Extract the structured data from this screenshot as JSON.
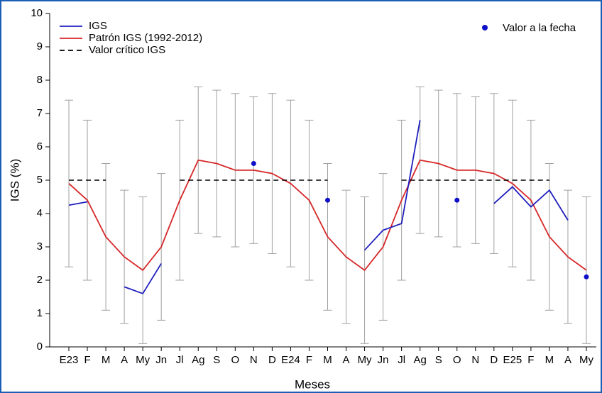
{
  "chart_data": {
    "type": "line",
    "x_label": "Meses",
    "y_label": "IGS (%)",
    "categories": [
      "E23",
      "F",
      "M",
      "A",
      "My",
      "Jn",
      "Jl",
      "Ag",
      "S",
      "O",
      "N",
      "D",
      "E24",
      "F",
      "M",
      "A",
      "My",
      "Jn",
      "Jl",
      "Ag",
      "S",
      "O",
      "N",
      "D",
      "E25",
      "F",
      "M",
      "A",
      "My"
    ],
    "ylim": [
      0,
      10
    ],
    "yticks": [
      0,
      1,
      2,
      3,
      4,
      5,
      6,
      7,
      8,
      9,
      10
    ],
    "series": [
      {
        "name": "IGS",
        "color": "#1f1fbf",
        "style": "solid",
        "values": [
          4.25,
          4.35,
          null,
          1.8,
          1.6,
          2.5,
          null,
          null,
          null,
          null,
          null,
          null,
          null,
          null,
          null,
          null,
          2.9,
          3.5,
          3.7,
          6.8,
          null,
          null,
          null,
          4.3,
          4.8,
          4.2,
          4.7,
          3.8,
          null
        ]
      },
      {
        "name": "Patrón IGS (1992-2012)",
        "color": "#d62728",
        "style": "solid",
        "values": [
          4.9,
          4.4,
          3.3,
          2.7,
          2.3,
          3.0,
          4.4,
          5.6,
          5.5,
          5.3,
          5.3,
          5.2,
          4.9,
          4.4,
          3.3,
          2.7,
          2.3,
          3.0,
          4.4,
          5.6,
          5.5,
          5.3,
          5.3,
          5.2,
          4.9,
          4.4,
          3.3,
          2.7,
          2.3
        ]
      },
      {
        "name": "Valor crítico IGS",
        "color": "#000000",
        "style": "dashed",
        "values": [
          5,
          5,
          5,
          null,
          null,
          null,
          5,
          5,
          5,
          5,
          5,
          5,
          5,
          5,
          5,
          null,
          null,
          null,
          5,
          5,
          5,
          5,
          5,
          5,
          5,
          5,
          5,
          null,
          null
        ]
      },
      {
        "name": "Valor a la fecha",
        "color": "#1010c8",
        "style": "marker",
        "values": [
          null,
          null,
          null,
          null,
          null,
          null,
          null,
          null,
          null,
          null,
          5.5,
          null,
          null,
          null,
          4.4,
          null,
          null,
          null,
          null,
          null,
          null,
          4.4,
          null,
          null,
          null,
          null,
          null,
          null,
          2.1
        ]
      }
    ],
    "error_color": "#a0a0a0",
    "error_low": [
      2.4,
      2.0,
      1.1,
      0.7,
      0.1,
      0.8,
      2.0,
      3.4,
      3.3,
      3.0,
      3.1,
      2.8,
      2.4,
      2.0,
      1.1,
      0.7,
      0.1,
      0.8,
      2.0,
      3.4,
      3.3,
      3.0,
      3.1,
      2.8,
      2.4,
      2.0,
      1.1,
      0.7,
      0.1
    ],
    "error_high": [
      7.4,
      6.8,
      5.5,
      4.7,
      4.5,
      5.2,
      6.8,
      7.8,
      7.7,
      7.6,
      7.5,
      7.6,
      7.4,
      6.8,
      5.5,
      4.7,
      4.5,
      5.2,
      6.8,
      7.8,
      7.7,
      7.6,
      7.5,
      7.6,
      7.4,
      6.8,
      5.5,
      4.7,
      4.5
    ]
  }
}
